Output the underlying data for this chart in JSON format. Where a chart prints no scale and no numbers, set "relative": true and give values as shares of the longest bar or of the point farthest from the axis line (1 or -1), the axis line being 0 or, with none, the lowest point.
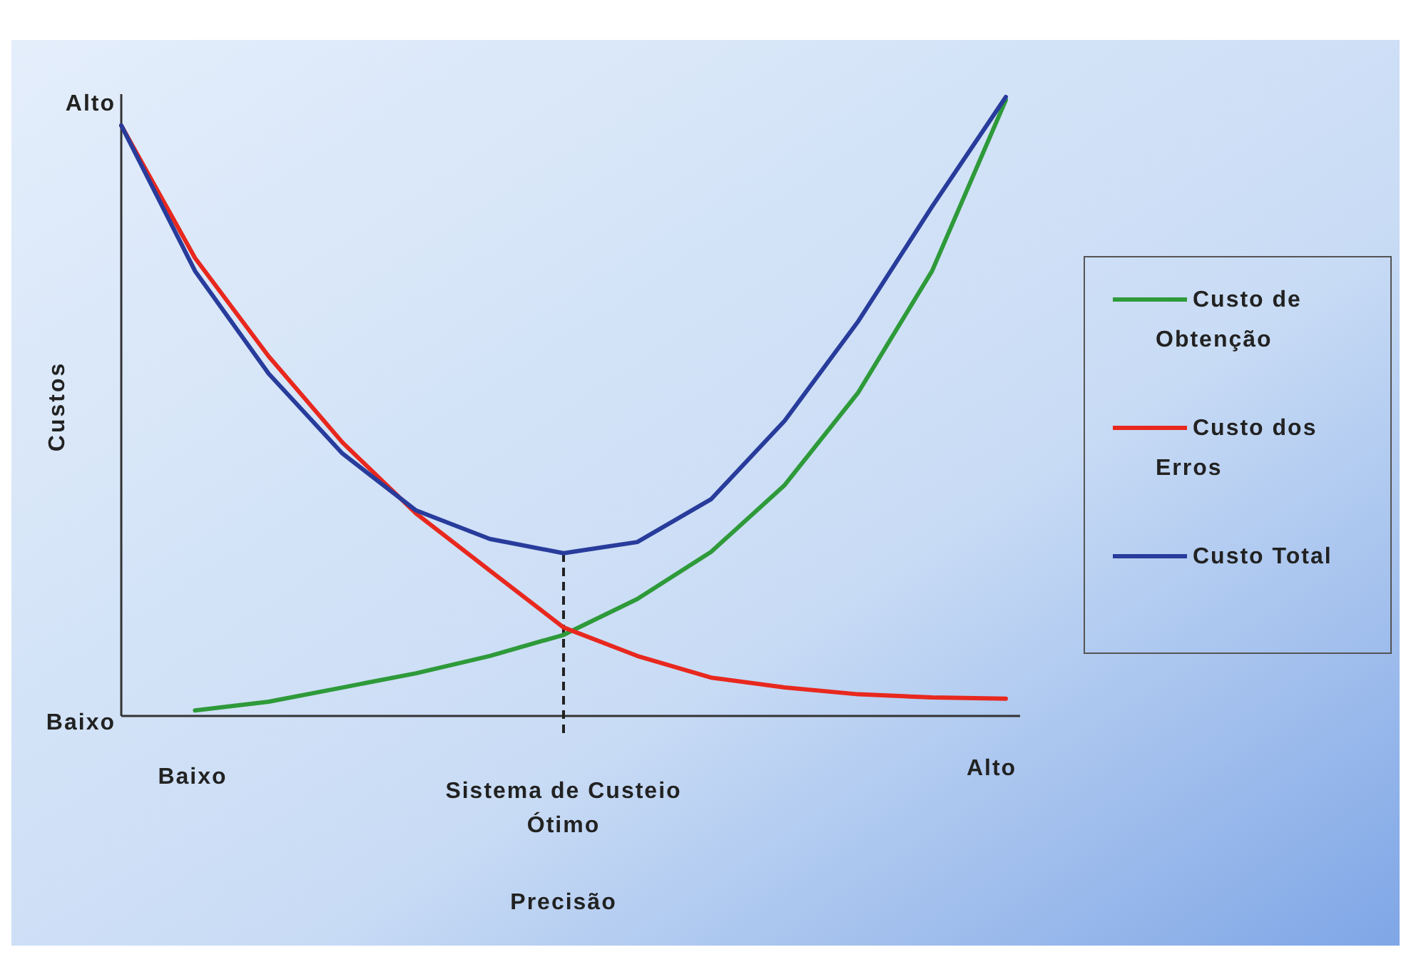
{
  "chart_data": {
    "type": "line",
    "ylabel": "Custos",
    "relative": true,
    "categories": [
      null,
      null,
      null,
      null,
      null,
      null,
      null,
      null,
      null,
      null,
      null,
      null,
      null
    ],
    "annotations": [
      "Alto",
      "Baixo",
      "Baixo",
      "Alto",
      "Sistema de Custeio Ótimo",
      "Precisão"
    ],
    "series": [
      {
        "name": "Custo de Obtenção",
        "color": "#2e9a3a",
        "values": [
          null,
          0.009,
          0.023,
          0.046,
          0.069,
          0.097,
          0.131,
          0.189,
          0.265,
          0.373,
          0.523,
          0.719,
          0.995
        ]
      },
      {
        "name": "Custo dos Erros",
        "color": "#e8281e",
        "values": [
          0.954,
          0.74,
          0.581,
          0.442,
          0.327,
          0.235,
          0.143,
          0.097,
          0.062,
          0.046,
          0.035,
          0.03,
          0.028
        ]
      },
      {
        "name": "Custo Total",
        "color": "#283c9c",
        "values": [
          0.954,
          0.719,
          0.553,
          0.424,
          0.332,
          0.286,
          0.263,
          0.281,
          0.35,
          0.477,
          0.638,
          0.823,
          1.0
        ]
      }
    ],
    "legend": "right",
    "line_style": "solid"
  }
}
